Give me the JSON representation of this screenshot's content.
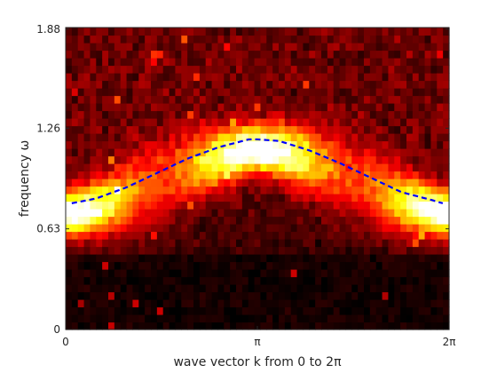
{
  "chart_data": {
    "type": "heatmap",
    "title": "",
    "xlabel": "wave vector k from 0 to 2π",
    "ylabel": "frequency ω",
    "xlim": [
      0,
      6.283
    ],
    "ylim": [
      0,
      1.89
    ],
    "x_ticks": [
      {
        "value": 0,
        "label": "0"
      },
      {
        "value": 3.1416,
        "label": "π"
      },
      {
        "value": 6.2832,
        "label": "2π"
      }
    ],
    "y_ticks": [
      {
        "value": 0,
        "label": "0"
      },
      {
        "value": 0.63,
        "label": "0.63"
      },
      {
        "value": 1.26,
        "label": "1.26"
      },
      {
        "value": 1.88,
        "label": "1.88"
      }
    ],
    "grid": false,
    "colormap": "hot",
    "heatmap": {
      "description": "spectral intensity vs wave vector k and frequency omega",
      "nx": 63,
      "ny": 40,
      "band_peak_intensity_at_k0": 1.0,
      "band_peak_intensity_at_kpi": 0.35
    },
    "series": [
      {
        "style": "dashed",
        "color": "#0000ff",
        "x": [
          0.1,
          0.5,
          1.0,
          1.5,
          2.0,
          2.5,
          3.0,
          3.1416,
          3.5,
          4.0,
          4.5,
          5.0,
          5.5,
          6.0,
          6.18
        ],
        "y": [
          0.79,
          0.82,
          0.89,
          0.98,
          1.07,
          1.14,
          1.19,
          1.19,
          1.18,
          1.12,
          1.04,
          0.95,
          0.86,
          0.81,
          0.79
        ]
      }
    ]
  },
  "colors": {
    "axes": "#262626",
    "dispersion_line": "#0000ff",
    "background": "#ffffff"
  }
}
